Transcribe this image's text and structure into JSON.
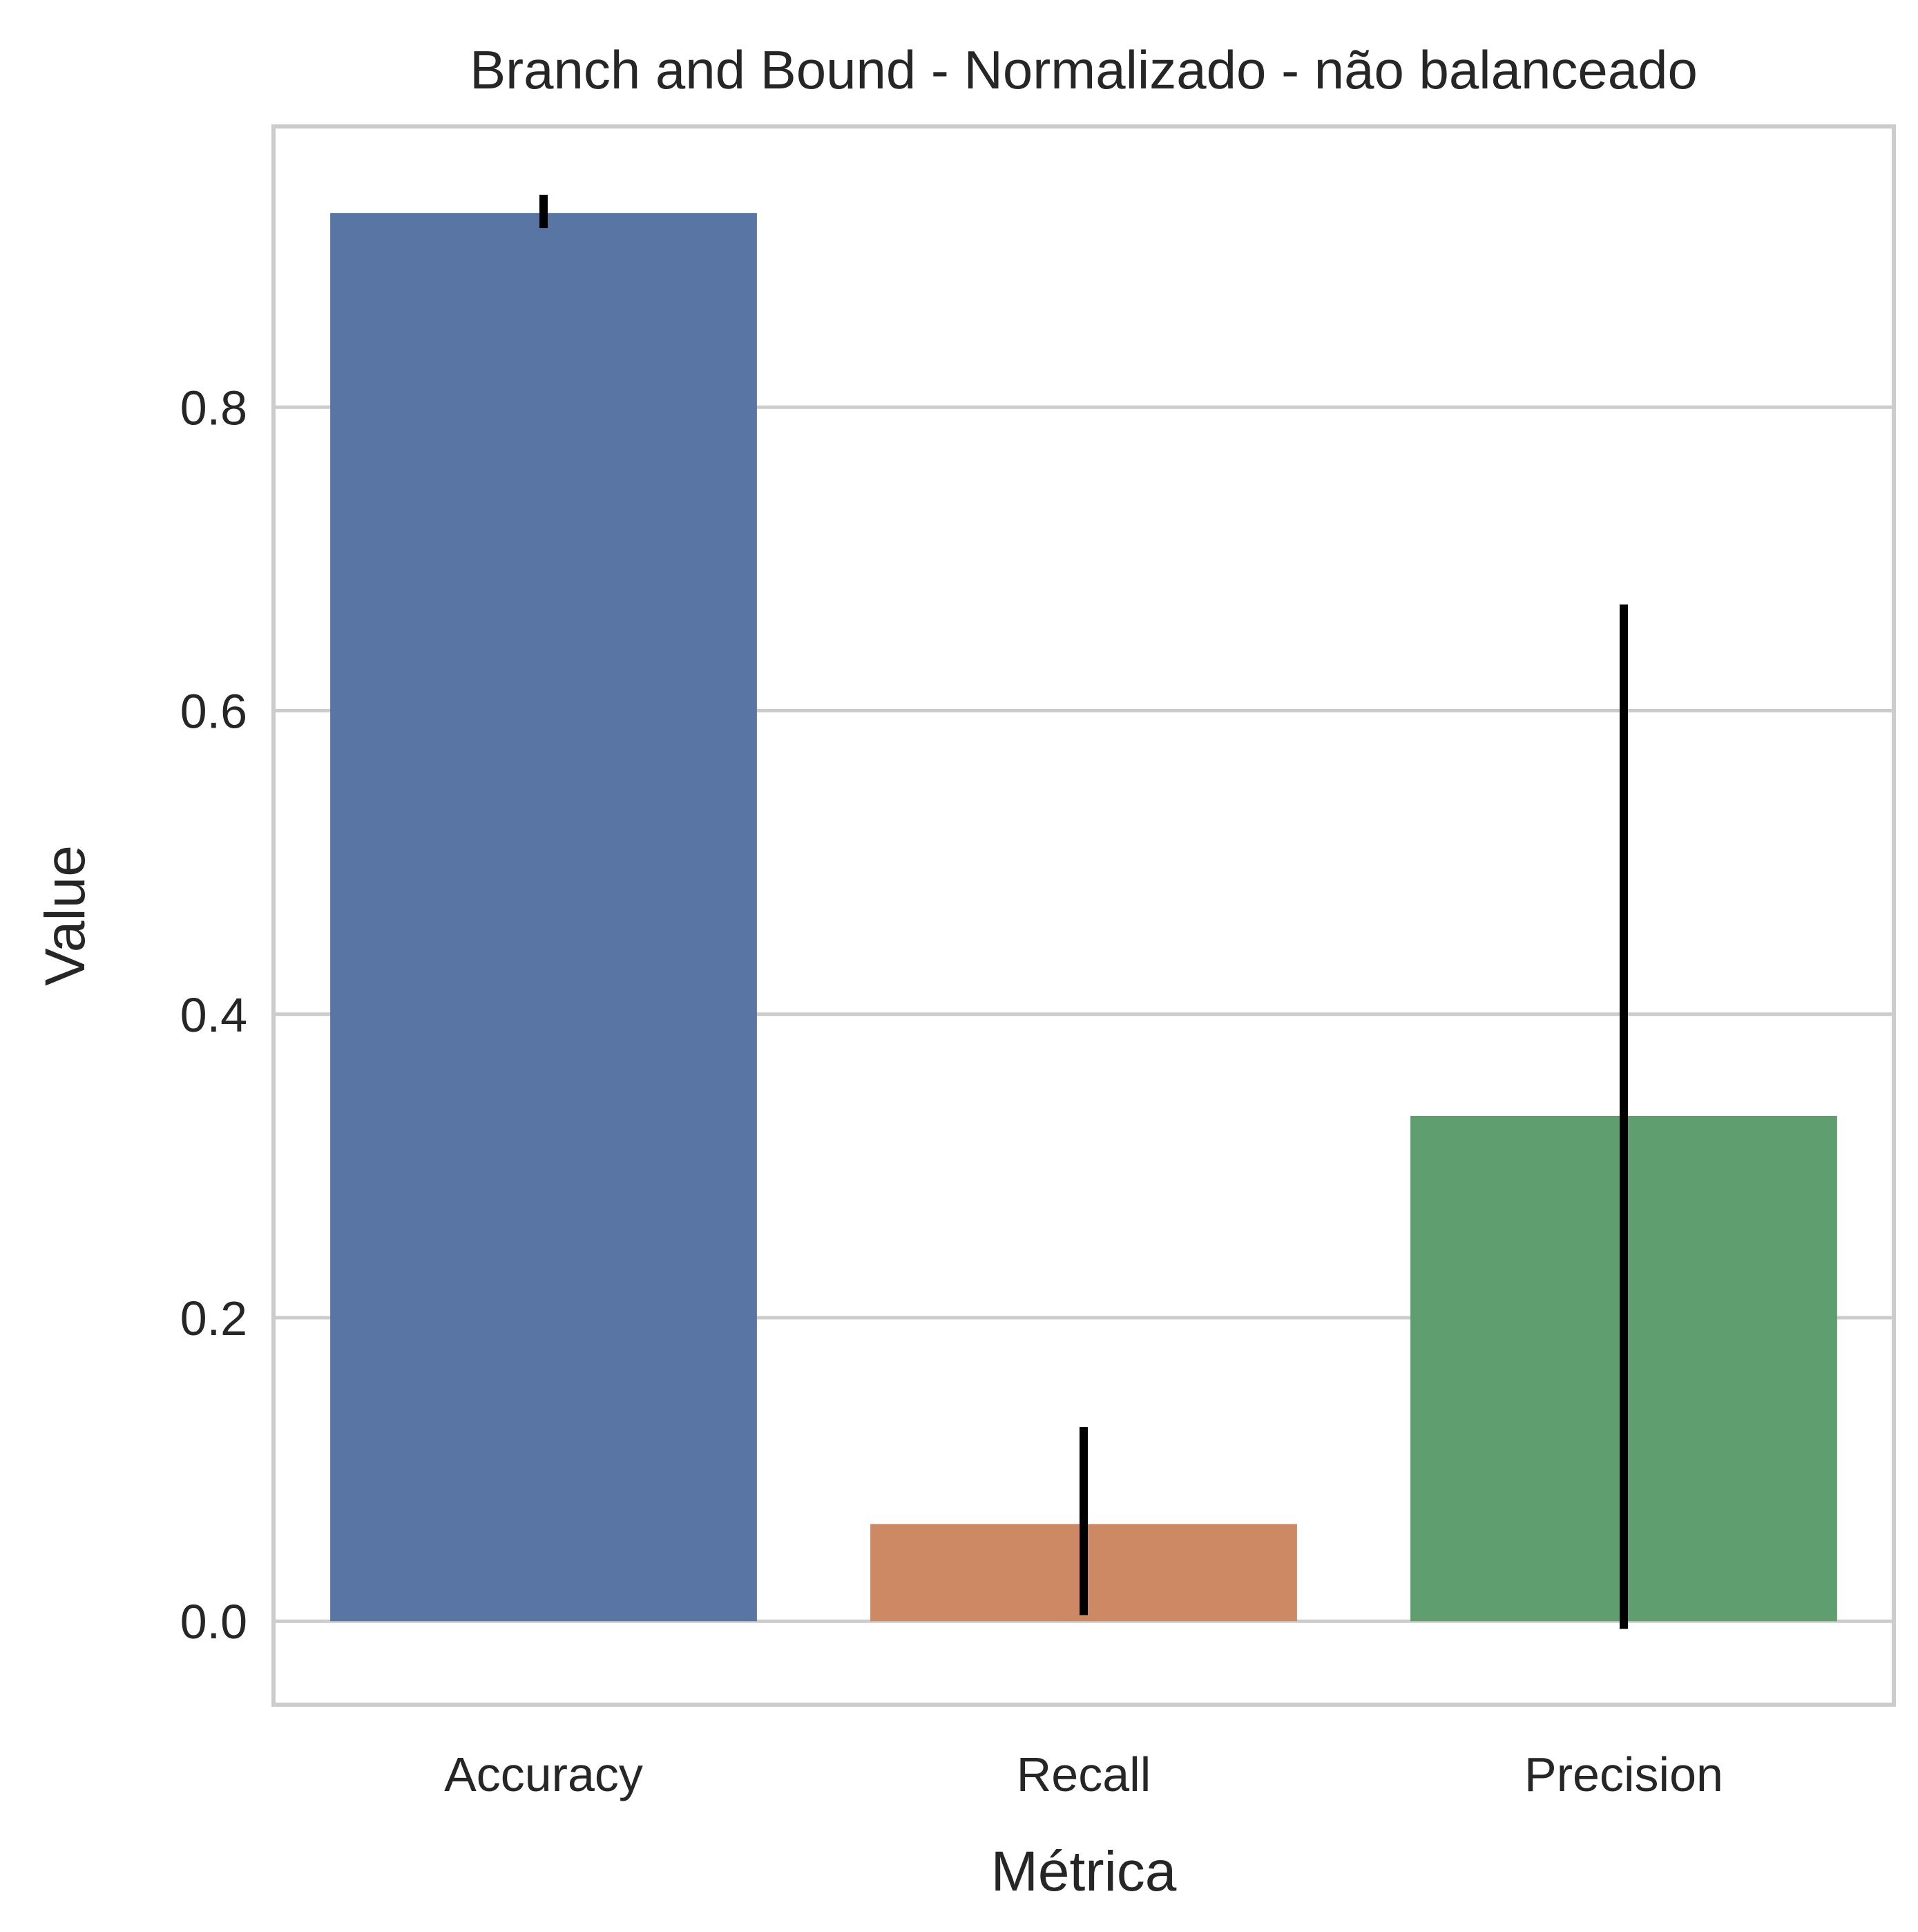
{
  "chart_data": {
    "type": "bar",
    "title": "Branch and Bound - Normalizado - não balanceado",
    "xlabel": "Métrica",
    "ylabel": "Value",
    "categories": [
      "Accuracy",
      "Recall",
      "Precision"
    ],
    "values": [
      0.928,
      0.064,
      0.333
    ],
    "error_bars": [
      {
        "low": 0.918,
        "high": 0.94
      },
      {
        "low": 0.004,
        "high": 0.128
      },
      {
        "low": -0.005,
        "high": 0.67
      }
    ],
    "colors": [
      "#5975a4",
      "#cc8963",
      "#5f9e6e"
    ],
    "error_bar_color": "#000000",
    "ylim": [
      -0.055,
      0.985
    ],
    "yticks": [
      0.0,
      0.2,
      0.4,
      0.6,
      0.8
    ],
    "ytick_labels": [
      "0.0",
      "0.2",
      "0.4",
      "0.6",
      "0.8"
    ],
    "grid": "horizontal",
    "grid_color": "#cccccc",
    "frame_color": "#cccccc",
    "legend": "none"
  }
}
